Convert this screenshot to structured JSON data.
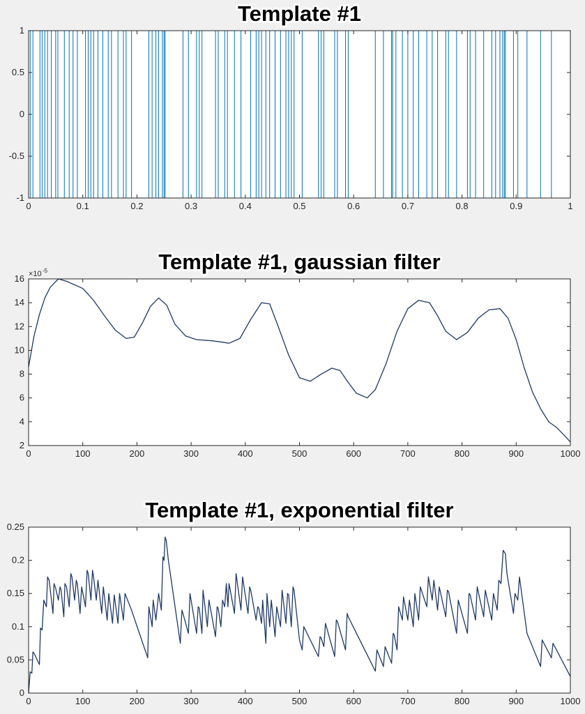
{
  "chart_data": [
    {
      "type": "spike",
      "title": "Template #1",
      "xlim": [
        0,
        1
      ],
      "ylim": [
        -1,
        1
      ],
      "xticks": [
        "0",
        "0.1",
        "0.2",
        "0.3",
        "0.4",
        "0.5",
        "0.6",
        "0.7",
        "0.8",
        "0.9",
        "1"
      ],
      "yticks": [
        "-1",
        "-0.5",
        "0",
        "0.5",
        "1"
      ],
      "line_color": "#0072bd",
      "spikes": [
        0.003,
        0.008,
        0.021,
        0.025,
        0.03,
        0.035,
        0.042,
        0.05,
        0.054,
        0.066,
        0.075,
        0.082,
        0.09,
        0.105,
        0.11,
        0.115,
        0.12,
        0.128,
        0.137,
        0.147,
        0.153,
        0.165,
        0.175,
        0.18,
        0.19,
        0.222,
        0.228,
        0.235,
        0.24,
        0.247,
        0.25,
        0.252,
        0.285,
        0.295,
        0.31,
        0.315,
        0.32,
        0.345,
        0.35,
        0.362,
        0.367,
        0.38,
        0.392,
        0.41,
        0.42,
        0.425,
        0.43,
        0.438,
        0.445,
        0.455,
        0.465,
        0.475,
        0.48,
        0.485,
        0.49,
        0.505,
        0.535,
        0.54,
        0.545,
        0.565,
        0.57,
        0.585,
        0.59,
        0.64,
        0.655,
        0.67,
        0.672,
        0.678,
        0.69,
        0.7,
        0.71,
        0.72,
        0.735,
        0.745,
        0.755,
        0.77,
        0.775,
        0.79,
        0.81,
        0.815,
        0.825,
        0.84,
        0.855,
        0.862,
        0.87,
        0.875,
        0.878,
        0.88,
        0.895,
        0.903,
        0.92,
        0.945,
        0.965
      ]
    },
    {
      "type": "line",
      "title": "Template #1, gaussian filter",
      "xlim": [
        0,
        1000
      ],
      "ylim": [
        2,
        16
      ],
      "xticks": [
        "0",
        "100",
        "200",
        "300",
        "400",
        "500",
        "600",
        "700",
        "800",
        "900",
        "1000"
      ],
      "yticks": [
        "2",
        "4",
        "6",
        "8",
        "10",
        "12",
        "14",
        "16"
      ],
      "exponent_base": "×10",
      "exponent_power": "-5",
      "line_color": "#1f3864",
      "x": [
        0,
        10,
        20,
        30,
        40,
        55,
        70,
        100,
        120,
        140,
        160,
        180,
        195,
        210,
        225,
        240,
        255,
        270,
        290,
        310,
        340,
        370,
        390,
        410,
        430,
        445,
        460,
        480,
        500,
        520,
        540,
        560,
        575,
        590,
        605,
        625,
        640,
        660,
        680,
        700,
        720,
        740,
        755,
        770,
        790,
        810,
        830,
        850,
        870,
        885,
        900,
        915,
        930,
        945,
        960,
        975,
        990,
        1000
      ],
      "y": [
        8.6,
        11.2,
        13,
        14.4,
        15.3,
        16,
        15.8,
        15.2,
        14.2,
        12.9,
        11.7,
        11,
        11.1,
        12.3,
        13.7,
        14.4,
        13.8,
        12.2,
        11.2,
        10.9,
        10.8,
        10.6,
        11,
        12.6,
        14,
        13.9,
        12.1,
        9.6,
        7.7,
        7.4,
        8,
        8.5,
        8.3,
        7.3,
        6.4,
        6,
        6.7,
        8.9,
        11.6,
        13.5,
        14.2,
        14,
        12.9,
        11.6,
        10.9,
        11.5,
        12.7,
        13.4,
        13.5,
        12.7,
        10.9,
        8.5,
        6.5,
        5.1,
        4,
        3.5,
        2.8,
        2.3
      ]
    },
    {
      "type": "line",
      "title": "Template #1, exponential filter",
      "xlim": [
        0,
        1000
      ],
      "ylim": [
        0,
        0.25
      ],
      "xticks": [
        "0",
        "100",
        "200",
        "300",
        "400",
        "500",
        "600",
        "700",
        "800",
        "900",
        "1000"
      ],
      "yticks": [
        "0",
        "0.05",
        "0.1",
        "0.15",
        "0.2",
        "0.25"
      ],
      "line_color": "#1f3864",
      "x": [
        0,
        3,
        6,
        8,
        10,
        20,
        22,
        25,
        28,
        33,
        35,
        38,
        45,
        47,
        50,
        55,
        58,
        60,
        65,
        67,
        70,
        75,
        78,
        80,
        85,
        88,
        90,
        95,
        98,
        105,
        108,
        110,
        115,
        118,
        120,
        125,
        128,
        135,
        138,
        145,
        148,
        155,
        158,
        165,
        168,
        175,
        178,
        190,
        220,
        222,
        228,
        230,
        235,
        240,
        245,
        248,
        250,
        252,
        254,
        258,
        280,
        283,
        285,
        295,
        298,
        310,
        313,
        315,
        320,
        322,
        330,
        333,
        345,
        348,
        350,
        355,
        358,
        362,
        365,
        368,
        370,
        380,
        383,
        392,
        395,
        405,
        408,
        410,
        420,
        423,
        425,
        430,
        432,
        438,
        440,
        445,
        448,
        455,
        458,
        465,
        468,
        475,
        478,
        480,
        485,
        488,
        490,
        500,
        505,
        508,
        535,
        538,
        540,
        545,
        548,
        565,
        568,
        570,
        585,
        588,
        590,
        640,
        643,
        655,
        658,
        670,
        673,
        675,
        680,
        683,
        690,
        692,
        700,
        703,
        710,
        713,
        720,
        723,
        735,
        738,
        745,
        748,
        755,
        758,
        770,
        773,
        775,
        790,
        793,
        810,
        813,
        815,
        825,
        828,
        840,
        843,
        855,
        858,
        865,
        868,
        872,
        876,
        880,
        883,
        895,
        898,
        903,
        906,
        920,
        945,
        948,
        965,
        968,
        1000
      ],
      "y": [
        0,
        0.032,
        0.03,
        0.062,
        0.06,
        0.043,
        0.098,
        0.095,
        0.14,
        0.13,
        0.175,
        0.17,
        0.12,
        0.165,
        0.158,
        0.14,
        0.16,
        0.155,
        0.115,
        0.165,
        0.16,
        0.13,
        0.18,
        0.175,
        0.14,
        0.17,
        0.165,
        0.12,
        0.16,
        0.13,
        0.185,
        0.18,
        0.14,
        0.185,
        0.175,
        0.14,
        0.17,
        0.12,
        0.16,
        0.11,
        0.15,
        0.105,
        0.148,
        0.105,
        0.15,
        0.11,
        0.15,
        0.125,
        0.053,
        0.13,
        0.1,
        0.14,
        0.11,
        0.15,
        0.125,
        0.205,
        0.2,
        0.235,
        0.23,
        0.2,
        0.075,
        0.125,
        0.12,
        0.09,
        0.15,
        0.09,
        0.13,
        0.128,
        0.09,
        0.155,
        0.1,
        0.14,
        0.085,
        0.13,
        0.128,
        0.1,
        0.14,
        0.13,
        0.165,
        0.13,
        0.165,
        0.12,
        0.18,
        0.125,
        0.175,
        0.12,
        0.16,
        0.155,
        0.11,
        0.13,
        0.128,
        0.105,
        0.14,
        0.075,
        0.15,
        0.1,
        0.14,
        0.085,
        0.13,
        0.1,
        0.155,
        0.105,
        0.15,
        0.148,
        0.1,
        0.16,
        0.155,
        0.08,
        0.065,
        0.1,
        0.055,
        0.085,
        0.083,
        0.07,
        0.105,
        0.055,
        0.11,
        0.108,
        0.065,
        0.12,
        0.115,
        0.033,
        0.065,
        0.04,
        0.07,
        0.045,
        0.09,
        0.087,
        0.065,
        0.13,
        0.11,
        0.145,
        0.11,
        0.14,
        0.1,
        0.15,
        0.11,
        0.16,
        0.13,
        0.175,
        0.14,
        0.17,
        0.125,
        0.16,
        0.115,
        0.155,
        0.153,
        0.09,
        0.14,
        0.09,
        0.15,
        0.148,
        0.11,
        0.16,
        0.115,
        0.155,
        0.11,
        0.15,
        0.125,
        0.17,
        0.165,
        0.215,
        0.21,
        0.18,
        0.12,
        0.15,
        0.14,
        0.175,
        0.09,
        0.04,
        0.08,
        0.053,
        0.075,
        0.025
      ]
    }
  ]
}
